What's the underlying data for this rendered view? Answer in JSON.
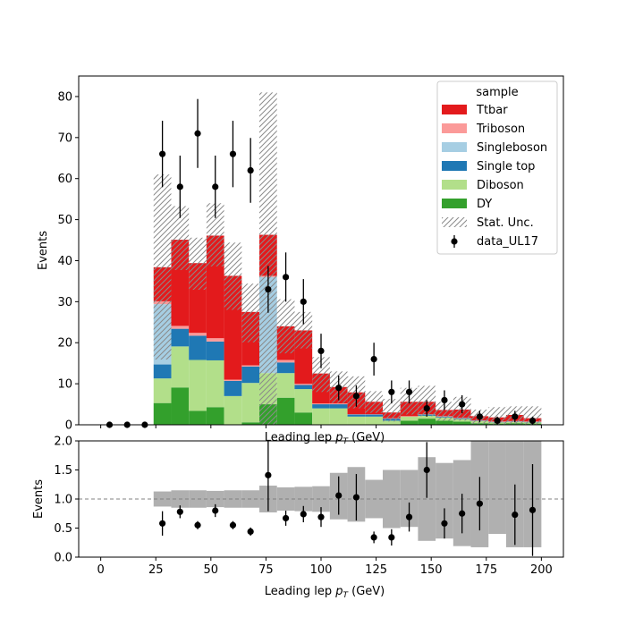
{
  "chart_data": [
    {
      "type": "bar",
      "subtype": "stacked-step-histogram-with-data-points",
      "xlabel": "Leading lep p_T (GeV)",
      "ylabel": "Events",
      "xlim": [
        -10,
        210
      ],
      "ylim": [
        0,
        85
      ],
      "yticks": [
        0,
        10,
        20,
        30,
        40,
        50,
        60,
        70,
        80
      ],
      "bin_edges": [
        24,
        32,
        40,
        48,
        56,
        64,
        72,
        80,
        88,
        96,
        104,
        112,
        120,
        128,
        136,
        144,
        152,
        160,
        168,
        176,
        184,
        192,
        200
      ],
      "legend": {
        "title": "sample",
        "placement": "top-right"
      },
      "series": [
        {
          "name": "DY",
          "color": "#33a02c",
          "values": [
            5.3,
            9.1,
            3.4,
            4.3,
            0,
            0.6,
            5.0,
            6.6,
            3.0,
            0,
            0,
            0,
            0,
            0,
            1.0,
            1.5,
            1.0,
            0.8,
            0.4,
            0.3,
            0.4,
            0.3
          ]
        },
        {
          "name": "Diboson",
          "color": "#b2df8a",
          "values": [
            6.0,
            10.0,
            12.4,
            11.4,
            7.0,
            9.6,
            7.6,
            6.0,
            5.7,
            4.0,
            4.0,
            2.0,
            2.0,
            1.0,
            1.0,
            0.7,
            0.8,
            0.6,
            0.5,
            0.3,
            0.3,
            0.3
          ]
        },
        {
          "name": "Single top",
          "color": "#1f78b4",
          "values": [
            3.4,
            4.3,
            5.9,
            4.6,
            3.7,
            4.0,
            0,
            2.6,
            1.0,
            1.0,
            1.0,
            0.5,
            0.5,
            0.5,
            0,
            0.3,
            0.2,
            0.2,
            0.1,
            0.1,
            0.1,
            0.1
          ]
        },
        {
          "name": "Singleboson",
          "color": "#a6cee3",
          "values": [
            14.7,
            0,
            0,
            0,
            0,
            0,
            23.4,
            0,
            0,
            0,
            0,
            0,
            0,
            0,
            0,
            0,
            0,
            0,
            0,
            0,
            0,
            0
          ]
        },
        {
          "name": "Triboson",
          "color": "#fb9a99",
          "values": [
            0.7,
            0.7,
            0.7,
            0.8,
            0.3,
            0.3,
            0.3,
            0.6,
            0.3,
            0.2,
            0.2,
            0.1,
            0.1,
            0.1,
            0.1,
            0.1,
            0.1,
            0.1,
            0.1,
            0.1,
            0.1,
            0.1
          ]
        },
        {
          "name": "Ttbar",
          "color": "#e31a1c",
          "values": [
            8.3,
            21.0,
            17.0,
            25.0,
            25.3,
            13.0,
            10.0,
            8.2,
            13.0,
            7.3,
            4.0,
            5.3,
            3.0,
            1.4,
            3.5,
            3.0,
            1.5,
            2.0,
            1.0,
            1.0,
            1.5,
            0.8
          ]
        }
      ],
      "stat_unc": {
        "name": "Stat. Unc.",
        "low": [
          15.9,
          37.7,
          32.9,
          38.6,
          28.0,
          20.1,
          0.1,
          17.4,
          18.6,
          8.0,
          5.3,
          4.0,
          2.9,
          0.8,
          2.5,
          2.1,
          1.0,
          1.0,
          0.2,
          0.1,
          0.2,
          0.1
        ],
        "high": [
          61.0,
          53.3,
          45.6,
          54.0,
          44.4,
          34.4,
          81.0,
          30.6,
          27.5,
          16.5,
          13.0,
          11.8,
          8.2,
          6.3,
          9.0,
          9.5,
          5.6,
          6.8,
          3.7,
          4.3,
          4.5,
          4.5
        ]
      },
      "data_points": {
        "name": "data_UL17",
        "x": [
          4,
          12,
          20,
          28,
          36,
          44,
          52,
          60,
          68,
          76,
          84,
          92,
          100,
          108,
          116,
          124,
          132,
          140,
          148,
          156,
          164,
          172,
          180,
          188,
          196
        ],
        "y": [
          0,
          0,
          0,
          66,
          58,
          71,
          58,
          66,
          62,
          33,
          36,
          30,
          18,
          9,
          7,
          16,
          8,
          8,
          4,
          6,
          5,
          2,
          1,
          2,
          1
        ],
        "yerr": [
          0,
          0,
          0,
          8.1,
          7.6,
          8.4,
          7.6,
          8.1,
          7.9,
          5.7,
          6.0,
          5.5,
          4.2,
          3.0,
          2.6,
          4.0,
          2.8,
          2.8,
          2.0,
          2.4,
          2.2,
          1.4,
          1.0,
          1.4,
          1.0
        ]
      }
    },
    {
      "type": "scatter",
      "subtype": "ratio-panel",
      "xlabel": "Leading lep p_T (GeV)",
      "ylabel": "Events",
      "xlim": [
        -10,
        210
      ],
      "ylim": [
        0,
        2
      ],
      "xticks": [
        0,
        25,
        50,
        75,
        100,
        125,
        150,
        175,
        200
      ],
      "yticks": [
        "0.0",
        "0.5",
        "1.0",
        "1.5",
        "2.0"
      ],
      "reference_line": 1.0,
      "unc_band": {
        "color": "#b0b0b0",
        "low": [
          0.87,
          0.85,
          0.85,
          0.86,
          0.85,
          0.85,
          0.77,
          0.8,
          0.79,
          0.78,
          0.65,
          0.61,
          0.67,
          0.5,
          0.52,
          0.28,
          0.32,
          0.19,
          0.17,
          0.4,
          0.17,
          0.17
        ],
        "high": [
          1.13,
          1.15,
          1.15,
          1.14,
          1.15,
          1.15,
          1.23,
          1.2,
          1.21,
          1.22,
          1.45,
          1.55,
          1.33,
          1.5,
          1.5,
          1.72,
          1.62,
          1.67,
          2.0,
          2.0,
          2.0,
          2.0
        ]
      },
      "points": {
        "x": [
          28,
          36,
          44,
          52,
          60,
          68,
          76,
          84,
          92,
          100,
          108,
          116,
          124,
          132,
          140,
          148,
          156,
          164,
          172,
          188,
          196
        ],
        "y": [
          0.58,
          0.78,
          0.55,
          0.8,
          0.55,
          0.44,
          1.41,
          0.67,
          0.74,
          0.69,
          1.06,
          1.03,
          0.34,
          0.34,
          0.69,
          1.5,
          0.58,
          0.75,
          0.92,
          0.73,
          0.81
        ],
        "yerr": [
          0.21,
          0.11,
          0.07,
          0.11,
          0.07,
          0.07,
          0.62,
          0.13,
          0.14,
          0.17,
          0.33,
          0.4,
          0.1,
          0.14,
          0.25,
          0.48,
          0.26,
          0.34,
          0.46,
          0.52,
          0.79
        ]
      }
    }
  ]
}
